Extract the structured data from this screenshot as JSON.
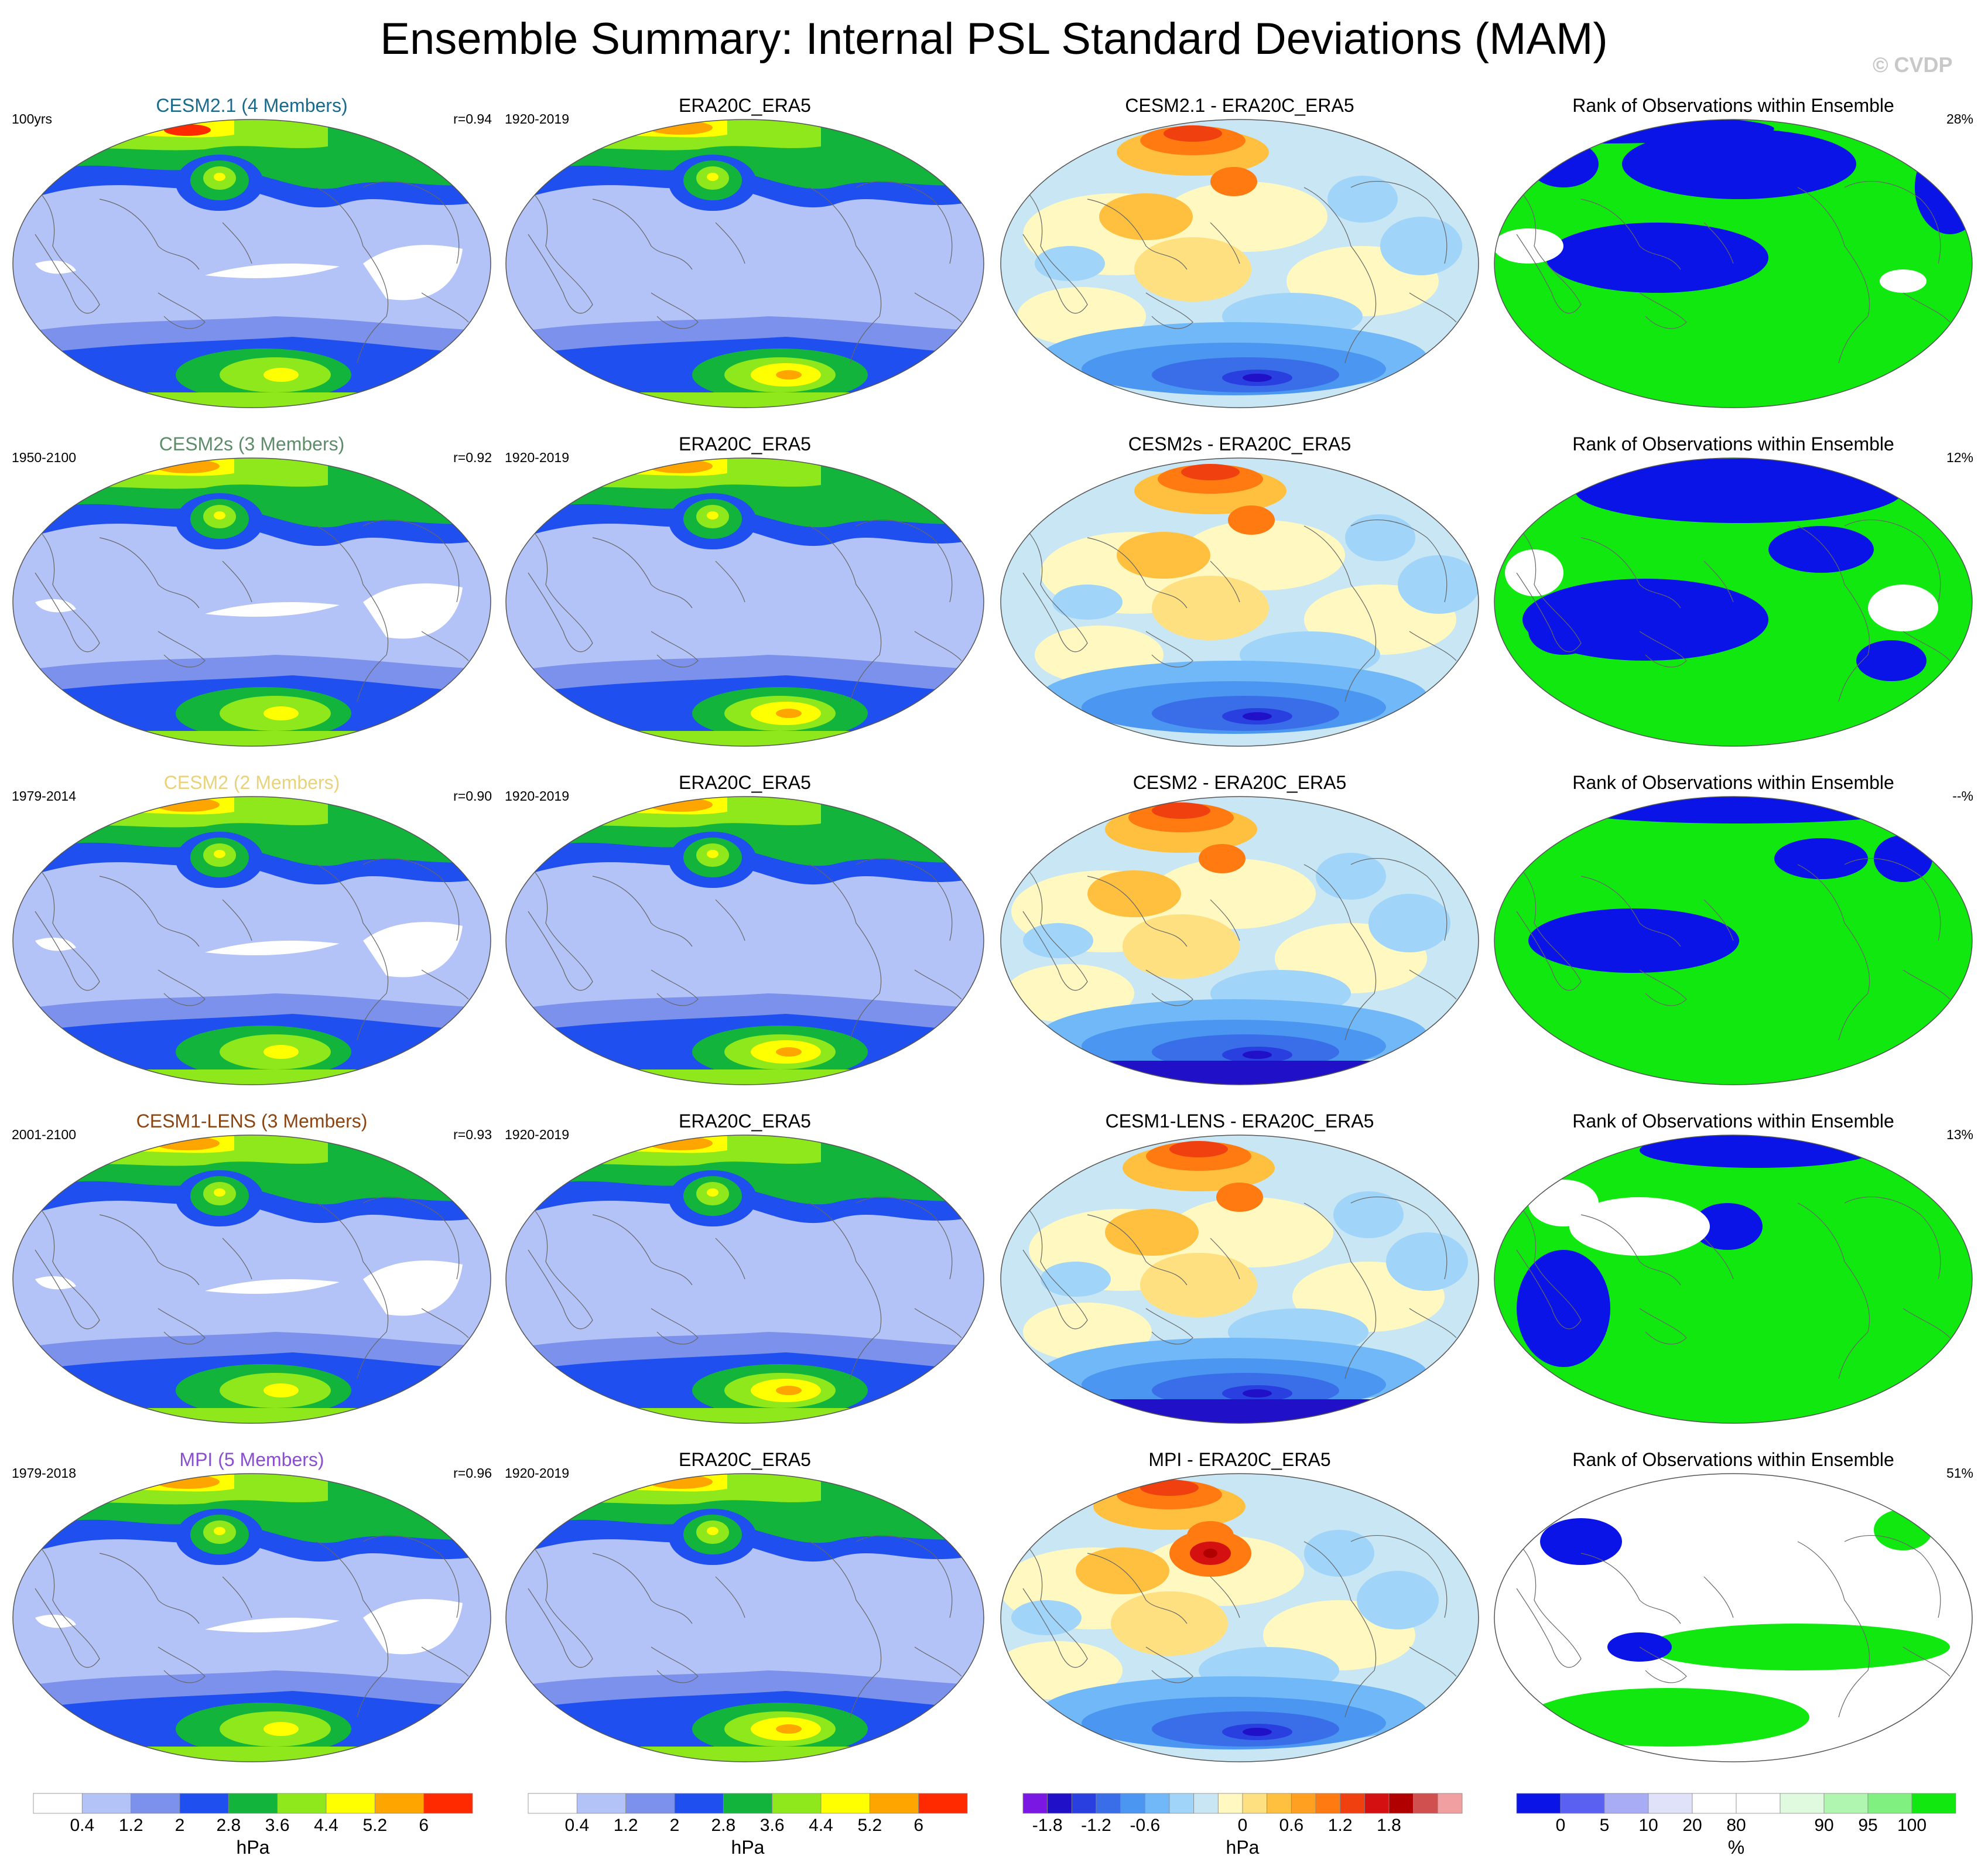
{
  "title": "Ensemble Summary: Internal PSL Standard Deviations (MAM)",
  "copyright": "© CVDP",
  "rows": [
    {
      "model": {
        "title": "CESM2.1 (4 Members)",
        "color": "#1a6a8e",
        "left": "100yrs",
        "right": "r=0.94"
      },
      "obs": {
        "title": "ERA20C_ERA5",
        "left": "1920-2019"
      },
      "diff": {
        "title": "CESM2.1 - ERA20C_ERA5"
      },
      "rank": {
        "title": "Rank of Observations within Ensemble",
        "right": "28%"
      }
    },
    {
      "model": {
        "title": "CESM2s (3 Members)",
        "color": "#5e8c6a",
        "left": "1950-2100",
        "right": "r=0.92"
      },
      "obs": {
        "title": "ERA20C_ERA5",
        "left": "1920-2019"
      },
      "diff": {
        "title": "CESM2s - ERA20C_ERA5"
      },
      "rank": {
        "title": "Rank of Observations within Ensemble",
        "right": "12%"
      }
    },
    {
      "model": {
        "title": "CESM2 (2 Members)",
        "color": "#e8d27a",
        "left": "1979-2014",
        "right": "r=0.90"
      },
      "obs": {
        "title": "ERA20C_ERA5",
        "left": "1920-2019"
      },
      "diff": {
        "title": "CESM2 - ERA20C_ERA5"
      },
      "rank": {
        "title": "Rank of Observations within Ensemble",
        "right": "--%"
      }
    },
    {
      "model": {
        "title": "CESM1-LENS (3 Members)",
        "color": "#8b4513",
        "left": "2001-2100",
        "right": "r=0.93"
      },
      "obs": {
        "title": "ERA20C_ERA5",
        "left": "1920-2019"
      },
      "diff": {
        "title": "CESM1-LENS - ERA20C_ERA5"
      },
      "rank": {
        "title": "Rank of Observations within Ensemble",
        "right": "13%"
      }
    },
    {
      "model": {
        "title": "MPI (5 Members)",
        "color": "#8a4fd0",
        "left": "1979-2018",
        "right": "r=0.96"
      },
      "obs": {
        "title": "ERA20C_ERA5",
        "left": "1920-2019"
      },
      "diff": {
        "title": "MPI - ERA20C_ERA5"
      },
      "rank": {
        "title": "Rank of Observations within Ensemble",
        "right": "51%"
      }
    }
  ],
  "colorbars": [
    {
      "unit": "hPa",
      "colors": [
        "#ffffff",
        "#b4c3f7",
        "#7b91ec",
        "#1f4fee",
        "#12b43c",
        "#8ee81c",
        "#ffff00",
        "#ffa500",
        "#ff2a00"
      ],
      "ticks": [
        "0.4",
        "1.2",
        "2",
        "2.8",
        "3.6",
        "4.4",
        "5.2",
        "6"
      ]
    },
    {
      "unit": "hPa",
      "colors": [
        "#ffffff",
        "#b4c3f7",
        "#7b91ec",
        "#1f4fee",
        "#12b43c",
        "#8ee81c",
        "#ffff00",
        "#ffa500",
        "#ff2a00"
      ],
      "ticks": [
        "0.4",
        "1.2",
        "2",
        "2.8",
        "3.6",
        "4.4",
        "5.2",
        "6"
      ]
    },
    {
      "unit": "hPa",
      "colors": [
        "#7b17e3",
        "#2010c8",
        "#2a3fe0",
        "#3a6ee8",
        "#4a96f0",
        "#70b8f8",
        "#a0d4f8",
        "#c8e6f4",
        "#fff8c0",
        "#ffe080",
        "#ffc040",
        "#ffa020",
        "#ff7a10",
        "#f04010",
        "#d41010",
        "#b00000",
        "#d05050",
        "#f0a0a0"
      ],
      "ticks": [
        "-1.8",
        "-1.2",
        "-0.6",
        "0",
        "0.6",
        "1.2",
        "1.8"
      ]
    },
    {
      "unit": "%",
      "colors": [
        "#0a14e6",
        "#5a60f0",
        "#a8acf5",
        "#e0e2fa",
        "#ffffff",
        "#ffffff",
        "#e0fae0",
        "#b0f5b0",
        "#80f080",
        "#10e810"
      ],
      "ticks": [
        "0",
        "5",
        "10",
        "20",
        "80",
        "90",
        "95",
        "100"
      ]
    }
  ]
}
